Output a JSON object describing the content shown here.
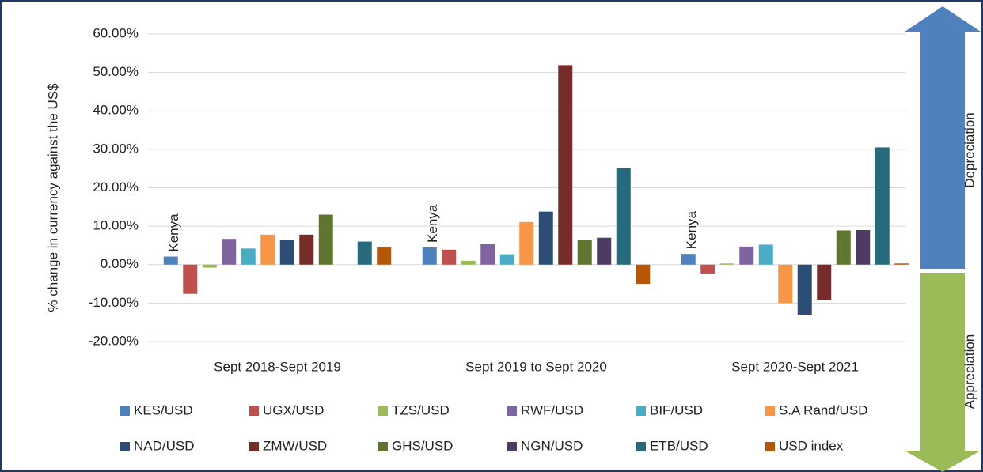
{
  "chart_data": {
    "type": "bar",
    "y_label": "% change in currency against the US$",
    "categories": [
      "Sept 2018-Sept 2019",
      "Sept 2019 to Sept 2020",
      "Sept 2020-Sept 2021"
    ],
    "series": [
      {
        "name": "KES/USD",
        "color": "#4f81bd",
        "values": [
          2.1,
          4.5,
          2.8
        ]
      },
      {
        "name": "UGX/USD",
        "color": "#c0504d",
        "values": [
          -7.6,
          3.9,
          -2.3
        ]
      },
      {
        "name": "TZS/USD",
        "color": "#9bbb59",
        "values": [
          -0.8,
          1.0,
          0.3
        ]
      },
      {
        "name": "RWF/USD",
        "color": "#8064a2",
        "values": [
          6.7,
          5.3,
          4.7
        ]
      },
      {
        "name": "BIF/USD",
        "color": "#4bacc6",
        "values": [
          4.2,
          2.7,
          5.2
        ]
      },
      {
        "name": "S.A Rand/USD",
        "color": "#f79646",
        "values": [
          7.8,
          11.1,
          -10.0
        ]
      },
      {
        "name": "NAD/USD",
        "color": "#2c4d75",
        "values": [
          6.4,
          13.8,
          -13.0
        ]
      },
      {
        "name": "ZMW/USD",
        "color": "#772c2a",
        "values": [
          7.8,
          51.9,
          -9.2
        ]
      },
      {
        "name": "GHS/USD",
        "color": "#5f7530",
        "values": [
          13.0,
          6.5,
          8.9
        ]
      },
      {
        "name": "NGN/USD",
        "color": "#4d3b62",
        "values": [
          0,
          7.0,
          9.0
        ]
      },
      {
        "name": "ETB/USD",
        "color": "#276a7c",
        "values": [
          6.0,
          25.1,
          30.5
        ]
      },
      {
        "name": "USD index",
        "color": "#b65708",
        "values": [
          4.5,
          -5.0,
          0.3
        ]
      }
    ],
    "ylim": [
      -20,
      60
    ],
    "yticks": [
      {
        "value": -20,
        "label": "-20.00%"
      },
      {
        "value": -10,
        "label": "-10.00%"
      },
      {
        "value": 0,
        "label": "0.00%"
      },
      {
        "value": 10,
        "label": "10.00%"
      },
      {
        "value": 20,
        "label": "20.00%"
      },
      {
        "value": 30,
        "label": "30.00%"
      },
      {
        "value": 40,
        "label": "40.00%"
      },
      {
        "value": 50,
        "label": "50.00%"
      },
      {
        "value": 60,
        "label": "60.00%"
      }
    ],
    "grid": true,
    "legend": "bottom",
    "annotations": [
      "Kenya",
      "Kenya",
      "Kenya",
      "Depreciation",
      "Appreciation"
    ]
  }
}
